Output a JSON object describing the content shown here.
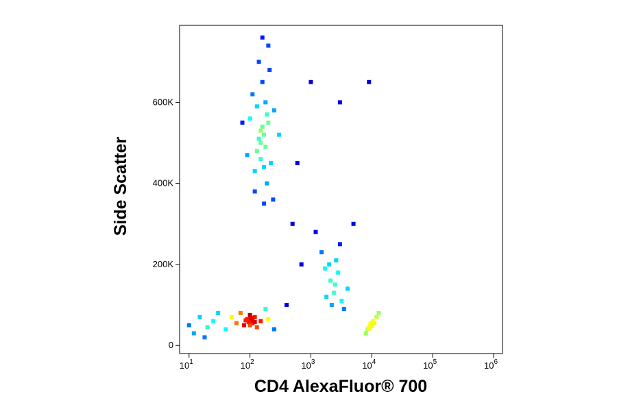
{
  "chart_data": {
    "type": "scatter",
    "xlabel": "CD4 AlexaFluor® 700",
    "ylabel": "Side Scatter",
    "xscale": "log",
    "xlim": [
      7,
      1400000
    ],
    "ylim": [
      -20000,
      790000
    ],
    "xticks": [
      {
        "value": 10,
        "label": "10",
        "exponent": "1"
      },
      {
        "value": 100,
        "label": "10",
        "exponent": "2"
      },
      {
        "value": 1000,
        "label": "10",
        "exponent": "3"
      },
      {
        "value": 10000,
        "label": "10",
        "exponent": "4"
      },
      {
        "value": 100000,
        "label": "10",
        "exponent": "5"
      },
      {
        "value": 1000000,
        "label": "10",
        "exponent": "6"
      }
    ],
    "yticks": [
      0,
      {
        "value": 200000,
        "label": "200K"
      },
      {
        "value": 400000,
        "label": "400K"
      },
      {
        "value": 600000,
        "label": "600K"
      }
    ],
    "x": [
      150,
      170,
      130,
      200,
      120,
      180,
      160,
      140,
      110,
      220,
      190,
      100,
      250,
      170,
      150,
      160,
      140,
      180,
      130,
      210,
      90,
      75,
      300,
      160,
      200,
      120,
      240,
      170,
      150,
      190,
      100,
      110,
      90,
      120,
      80,
      130,
      100,
      150,
      70,
      60,
      200,
      100,
      110,
      95,
      105,
      180,
      50,
      250,
      120,
      85,
      10,
      12,
      15,
      20,
      25,
      30,
      18,
      40,
      2000,
      2500,
      3000,
      1800,
      2200,
      2800,
      1500,
      3500,
      2600,
      2100,
      1200,
      4000,
      2400,
      3200,
      1700,
      10000,
      9000,
      11000,
      8500,
      10500,
      9500,
      12000,
      8000,
      10000,
      9800,
      13000,
      9200,
      500,
      700,
      3000,
      9000,
      400,
      600,
      1000,
      5000
    ],
    "y": [
      500000,
      520000,
      480000,
      550000,
      430000,
      600000,
      650000,
      700000,
      620000,
      450000,
      400000,
      560000,
      580000,
      350000,
      460000,
      540000,
      510000,
      490000,
      590000,
      680000,
      470000,
      550000,
      520000,
      760000,
      740000,
      380000,
      360000,
      440000,
      530000,
      570000,
      60000,
      55000,
      65000,
      70000,
      50000,
      45000,
      75000,
      60000,
      80000,
      55000,
      65000,
      50000,
      62000,
      58000,
      68000,
      90000,
      70000,
      40000,
      58000,
      62000,
      50000,
      30000,
      70000,
      45000,
      60000,
      80000,
      20000,
      40000,
      200000,
      150000,
      250000,
      120000,
      100000,
      180000,
      230000,
      90000,
      210000,
      160000,
      280000,
      140000,
      130000,
      110000,
      190000,
      50000,
      45000,
      55000,
      40000,
      60000,
      52000,
      70000,
      30000,
      48000,
      55000,
      80000,
      42000,
      300000,
      200000,
      600000,
      650000,
      100000,
      450000,
      650000,
      300000
    ]
  }
}
